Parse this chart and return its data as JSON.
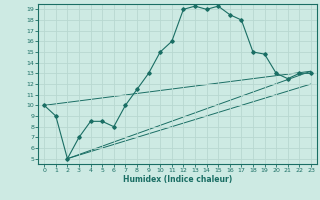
{
  "xlabel": "Humidex (Indice chaleur)",
  "bg_color": "#cdeae3",
  "grid_color": "#b8d8d0",
  "line_color": "#1a6e64",
  "xlim": [
    -0.5,
    23.5
  ],
  "ylim": [
    4.5,
    19.5
  ],
  "xticks": [
    0,
    1,
    2,
    3,
    4,
    5,
    6,
    7,
    8,
    9,
    10,
    11,
    12,
    13,
    14,
    15,
    16,
    17,
    18,
    19,
    20,
    21,
    22,
    23
  ],
  "yticks": [
    5,
    6,
    7,
    8,
    9,
    10,
    11,
    12,
    13,
    14,
    15,
    16,
    17,
    18,
    19
  ],
  "series": [
    [
      0,
      10
    ],
    [
      1,
      9
    ],
    [
      2,
      5
    ],
    [
      3,
      7
    ],
    [
      4,
      8.5
    ],
    [
      5,
      8.5
    ],
    [
      6,
      8
    ],
    [
      7,
      10
    ],
    [
      8,
      11.5
    ],
    [
      9,
      13
    ],
    [
      10,
      15
    ],
    [
      11,
      16
    ],
    [
      12,
      19
    ],
    [
      13,
      19.3
    ],
    [
      14,
      19
    ],
    [
      15,
      19.3
    ],
    [
      16,
      18.5
    ],
    [
      17,
      18
    ],
    [
      18,
      15
    ],
    [
      19,
      14.8
    ],
    [
      20,
      13
    ],
    [
      21,
      12.5
    ],
    [
      22,
      13
    ],
    [
      23,
      13
    ]
  ],
  "line2_pts": [
    [
      0,
      10
    ],
    [
      23,
      13.2
    ]
  ],
  "line3_pts": [
    [
      2,
      5
    ],
    [
      23,
      13.2
    ]
  ],
  "line4_pts": [
    [
      2,
      5
    ],
    [
      23,
      12.0
    ]
  ]
}
